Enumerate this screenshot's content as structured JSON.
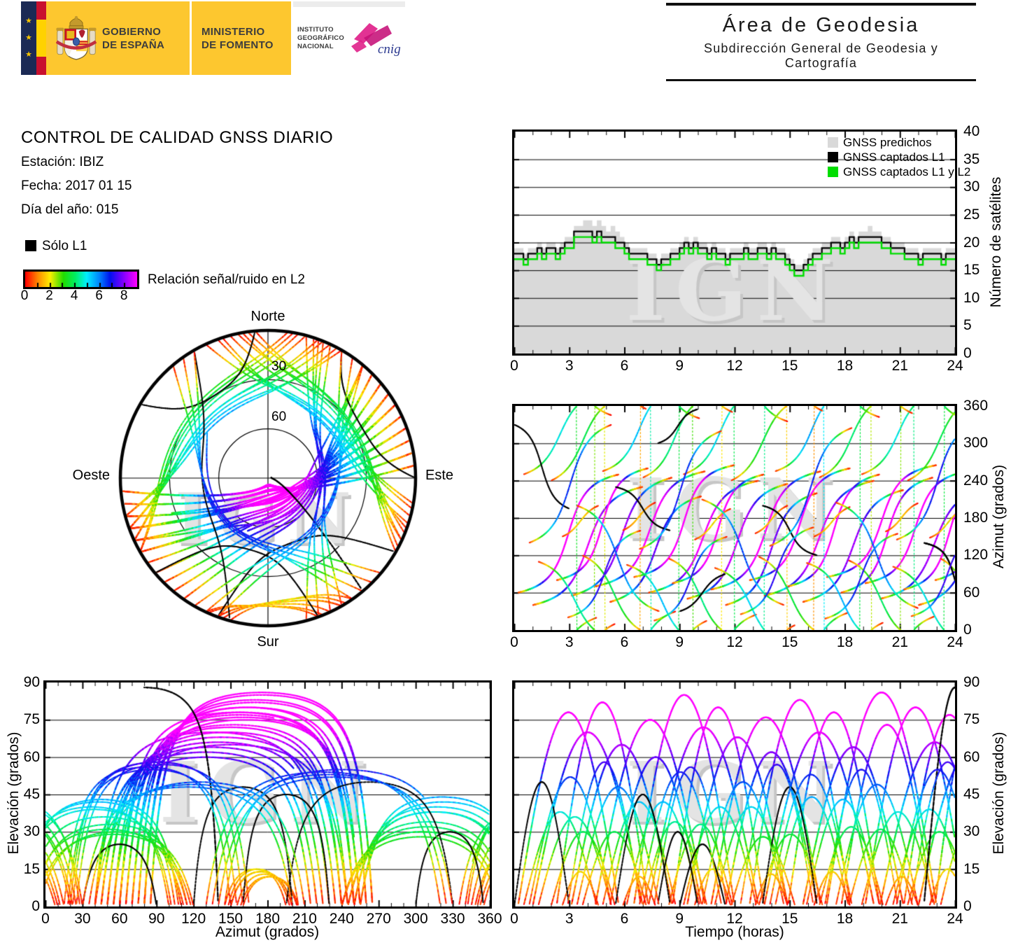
{
  "colors": {
    "logo_yellow": "#fdc72f",
    "logo_navy": "#1b2a55",
    "flag_red": "#c8102e",
    "flag_yellow": "#ffd200",
    "text_dark": "#3d3d3d",
    "cnig_magenta": "#e0218a",
    "cnig_blue": "#2b3990",
    "predicted_fill": "#d9d9d9",
    "captured_l1": "#000000",
    "captured_l1l2": "#00dd00",
    "watermark": "#c6c6c6",
    "watermark_hi": "#e4e4e4"
  },
  "header": {
    "star_glyph": "★",
    "gobierno_line1": "GOBIERNO",
    "gobierno_line2": "DE ESPAÑA",
    "ministerio_line1": "MINISTERIO",
    "ministerio_line2": "DE FOMENTO",
    "instituto_line1": "INSTITUTO",
    "instituto_line2": "GEOGRÁFICO",
    "instituto_line3": "NACIONAL",
    "cnig": "cnig",
    "area_title": "Área de Geodesia",
    "area_subtitle": "Subdirección General de Geodesia y Cartografía"
  },
  "report": {
    "title": "CONTROL DE CALIDAD GNSS DIARIO",
    "station": "Estación: IBIZ",
    "date": "Fecha: 2017 01 15",
    "doy": "Día del año: 015"
  },
  "legend": {
    "l1_only_label": "Sólo L1",
    "colorbar_label": "Relación señal/ruido en L2",
    "colorbar_ticks": [
      0,
      2,
      4,
      6,
      8
    ],
    "colorbar_range": [
      0,
      9
    ],
    "colormap": [
      [
        0.0,
        "#ff0000"
      ],
      [
        0.11,
        "#ff8800"
      ],
      [
        0.22,
        "#ffee00"
      ],
      [
        0.34,
        "#22dd00"
      ],
      [
        0.45,
        "#00ee66"
      ],
      [
        0.55,
        "#00eeff"
      ],
      [
        0.66,
        "#0088ff"
      ],
      [
        0.76,
        "#0011ee"
      ],
      [
        0.87,
        "#7700ff"
      ],
      [
        1.0,
        "#ff00ff"
      ]
    ]
  },
  "watermark": "IGN",
  "skyplot": {
    "north": "Norte",
    "south": "Sur",
    "west": "Oeste",
    "east": "Este",
    "ring30": "30",
    "ring60": "60"
  },
  "charts": {
    "sat_count": {
      "ylabel": "Número de satélites",
      "xticks": [
        0,
        3,
        6,
        9,
        12,
        15,
        18,
        21,
        24
      ],
      "yticks": [
        0,
        5,
        10,
        15,
        20,
        25,
        30,
        35,
        40
      ],
      "xlim": [
        0,
        24
      ],
      "ylim": [
        0,
        40
      ]
    },
    "azimuth_time": {
      "ylabel": "Azimut (grados)",
      "xticks": [
        0,
        3,
        6,
        9,
        12,
        15,
        18,
        21,
        24
      ],
      "yticks": [
        0,
        60,
        120,
        180,
        240,
        300,
        360
      ],
      "xlim": [
        0,
        24
      ],
      "ylim": [
        0,
        360
      ]
    },
    "elev_azimuth": {
      "ylabel": "Elevación (grados)",
      "xlabel": "Azimut (grados)",
      "xticks": [
        0,
        30,
        60,
        90,
        120,
        150,
        180,
        210,
        240,
        270,
        300,
        330,
        360
      ],
      "yticks": [
        0,
        15,
        30,
        45,
        60,
        75,
        90
      ],
      "xlim": [
        0,
        360
      ],
      "ylim": [
        0,
        90
      ]
    },
    "elev_time": {
      "ylabel": "Elevación (grados)",
      "xlabel": "Tiempo (horas)",
      "xticks": [
        0,
        3,
        6,
        9,
        12,
        15,
        18,
        21,
        24
      ],
      "yticks": [
        0,
        15,
        30,
        45,
        60,
        75,
        90
      ],
      "xlim": [
        0,
        24
      ],
      "ylim": [
        0,
        90
      ]
    }
  },
  "chart_data": {
    "sat_count": {
      "type": "step-line",
      "x_step_hours": 0.25,
      "series": [
        {
          "name": "GNSS predichos",
          "color": "#d9d9d9",
          "style": "area",
          "values": [
            19,
            19,
            18,
            19,
            19,
            20,
            19,
            20,
            20,
            19,
            20,
            21,
            21,
            23,
            23,
            24,
            24,
            23,
            24,
            23,
            22,
            23,
            22,
            21,
            20,
            19,
            19,
            19,
            19,
            18,
            18,
            17,
            18,
            18,
            19,
            19,
            20,
            21,
            20,
            21,
            20,
            20,
            19,
            20,
            19,
            19,
            18,
            19,
            19,
            19,
            20,
            19,
            19,
            20,
            20,
            19,
            20,
            19,
            19,
            18,
            17,
            16,
            16,
            17,
            18,
            19,
            19,
            20,
            20,
            21,
            21,
            20,
            21,
            22,
            21,
            22,
            22,
            23,
            22,
            22,
            21,
            21,
            20,
            20,
            20,
            19,
            19,
            19,
            18,
            19,
            19,
            19,
            19,
            18,
            19,
            19
          ]
        },
        {
          "name": "GNSS captados L1",
          "color": "#000000",
          "style": "step",
          "values": [
            18,
            18,
            17,
            18,
            18,
            19,
            18,
            19,
            19,
            18,
            19,
            20,
            20,
            22,
            22,
            22,
            22,
            21,
            22,
            21,
            21,
            21,
            20,
            20,
            19,
            18,
            18,
            18,
            18,
            17,
            17,
            16,
            17,
            17,
            18,
            18,
            19,
            20,
            19,
            20,
            19,
            19,
            18,
            19,
            18,
            18,
            17,
            18,
            18,
            18,
            19,
            18,
            18,
            19,
            19,
            18,
            19,
            18,
            18,
            17,
            16,
            15,
            15,
            16,
            17,
            18,
            18,
            19,
            19,
            20,
            20,
            19,
            20,
            21,
            20,
            21,
            21,
            21,
            21,
            21,
            20,
            20,
            19,
            19,
            19,
            18,
            18,
            18,
            17,
            18,
            18,
            18,
            18,
            17,
            18,
            18
          ]
        },
        {
          "name": "GNSS captados L1 y L2",
          "color": "#00dd00",
          "style": "step",
          "values": [
            17,
            17,
            16,
            17,
            17,
            18,
            17,
            18,
            18,
            17,
            18,
            19,
            19,
            21,
            21,
            21,
            21,
            20,
            21,
            20,
            20,
            20,
            19,
            19,
            18,
            17,
            17,
            17,
            17,
            16,
            16,
            15,
            16,
            16,
            17,
            17,
            18,
            19,
            18,
            19,
            18,
            18,
            17,
            18,
            17,
            17,
            16,
            17,
            17,
            17,
            18,
            17,
            17,
            18,
            18,
            17,
            18,
            17,
            17,
            16,
            15,
            14,
            14,
            15,
            16,
            17,
            17,
            18,
            18,
            19,
            19,
            18,
            19,
            20,
            19,
            20,
            20,
            20,
            20,
            20,
            19,
            19,
            18,
            18,
            18,
            17,
            17,
            17,
            16,
            17,
            17,
            17,
            17,
            16,
            17,
            17
          ]
        }
      ]
    },
    "passes_format": [
      "start_hour",
      "duration_hours",
      "azimuth_rise_deg",
      "azimuth_set_deg",
      "peak_elevation_deg",
      "l1_only"
    ],
    "passes": [
      [
        0.2,
        5.5,
        60,
        250,
        78,
        0
      ],
      [
        1.0,
        6.0,
        40,
        230,
        70,
        0
      ],
      [
        2.3,
        5.0,
        80,
        260,
        82,
        0
      ],
      [
        3.1,
        5.5,
        55,
        245,
        65,
        0
      ],
      [
        4.4,
        6.0,
        70,
        255,
        75,
        0
      ],
      [
        5.2,
        5.0,
        45,
        215,
        60,
        0
      ],
      [
        6.5,
        5.5,
        85,
        265,
        85,
        0
      ],
      [
        7.3,
        6.0,
        60,
        240,
        72,
        0
      ],
      [
        8.6,
        5.0,
        75,
        250,
        80,
        0
      ],
      [
        9.4,
        5.5,
        50,
        235,
        68,
        0
      ],
      [
        10.7,
        6.0,
        65,
        255,
        76,
        0
      ],
      [
        11.5,
        5.0,
        40,
        220,
        62,
        0
      ],
      [
        12.8,
        5.5,
        80,
        260,
        83,
        0
      ],
      [
        13.6,
        6.0,
        55,
        240,
        70,
        0
      ],
      [
        14.9,
        5.0,
        70,
        250,
        78,
        0
      ],
      [
        15.7,
        5.5,
        45,
        225,
        64,
        0
      ],
      [
        17.0,
        6.0,
        85,
        265,
        86,
        0
      ],
      [
        17.8,
        5.0,
        60,
        245,
        73,
        0
      ],
      [
        19.1,
        5.5,
        75,
        255,
        80,
        0
      ],
      [
        19.9,
        6.0,
        50,
        230,
        66,
        0
      ],
      [
        21.2,
        5.0,
        65,
        250,
        77,
        0
      ],
      [
        22.0,
        5.5,
        40,
        215,
        61,
        0
      ],
      [
        22.9,
        4.6,
        80,
        255,
        84,
        0
      ],
      [
        0.5,
        4.0,
        250,
        380,
        38,
        0
      ],
      [
        2.0,
        3.5,
        240,
        370,
        30,
        0
      ],
      [
        4.8,
        4.0,
        255,
        390,
        42,
        0
      ],
      [
        7.0,
        3.5,
        245,
        375,
        34,
        0
      ],
      [
        9.2,
        4.0,
        250,
        385,
        40,
        0
      ],
      [
        11.8,
        3.5,
        240,
        368,
        28,
        0
      ],
      [
        14.2,
        4.0,
        255,
        388,
        44,
        0
      ],
      [
        16.6,
        3.5,
        245,
        372,
        32,
        0
      ],
      [
        18.9,
        4.0,
        250,
        382,
        38,
        0
      ],
      [
        21.4,
        3.5,
        240,
        370,
        30,
        0
      ],
      [
        1.3,
        4.0,
        110,
        -15,
        36,
        0
      ],
      [
        3.7,
        3.5,
        120,
        -5,
        30,
        0
      ],
      [
        6.1,
        4.0,
        105,
        -20,
        42,
        0
      ],
      [
        8.4,
        3.5,
        115,
        -10,
        33,
        0
      ],
      [
        10.9,
        4.0,
        100,
        -25,
        40,
        0
      ],
      [
        13.3,
        3.5,
        118,
        -8,
        29,
        0
      ],
      [
        15.9,
        4.0,
        108,
        -18,
        43,
        0
      ],
      [
        18.2,
        3.5,
        112,
        -12,
        31,
        0
      ],
      [
        20.6,
        4.0,
        102,
        -22,
        39,
        0
      ],
      [
        23.2,
        3.0,
        115,
        -10,
        30,
        0
      ],
      [
        2.6,
        2.0,
        150,
        200,
        14,
        0
      ],
      [
        5.9,
        1.8,
        160,
        205,
        12,
        0
      ],
      [
        9.8,
        2.0,
        145,
        195,
        15,
        0
      ],
      [
        13.1,
        1.8,
        155,
        200,
        13,
        0
      ],
      [
        16.3,
        2.0,
        150,
        198,
        14,
        0
      ],
      [
        20.2,
        1.8,
        158,
        204,
        12,
        0
      ],
      [
        22.6,
        2.0,
        148,
        196,
        15,
        0
      ],
      [
        0.0,
        3.0,
        330,
        195,
        50,
        1
      ],
      [
        5.5,
        3.0,
        230,
        160,
        45,
        1
      ],
      [
        9.0,
        2.5,
        30,
        90,
        25,
        1
      ],
      [
        13.5,
        3.0,
        200,
        120,
        48,
        1
      ],
      [
        22.3,
        3.4,
        140,
        20,
        88,
        1
      ],
      [
        7.8,
        2.2,
        300,
        355,
        30,
        1
      ],
      [
        0.8,
        4.5,
        140,
        330,
        52,
        0
      ],
      [
        3.4,
        4.5,
        200,
        30,
        48,
        0
      ],
      [
        6.8,
        4.5,
        130,
        320,
        54,
        0
      ],
      [
        10.2,
        4.5,
        210,
        40,
        50,
        0
      ],
      [
        13.9,
        4.5,
        135,
        325,
        53,
        0
      ],
      [
        17.5,
        4.5,
        205,
        35,
        49,
        0
      ],
      [
        20.8,
        4.5,
        145,
        335,
        55,
        0
      ],
      [
        2.9,
        4.0,
        20,
        160,
        58,
        0
      ],
      [
        7.6,
        4.0,
        15,
        150,
        56,
        0
      ],
      [
        12.3,
        4.0,
        25,
        165,
        57,
        0
      ],
      [
        16.9,
        4.0,
        18,
        155,
        55,
        0
      ],
      [
        21.6,
        4.0,
        22,
        160,
        58,
        0
      ]
    ]
  }
}
